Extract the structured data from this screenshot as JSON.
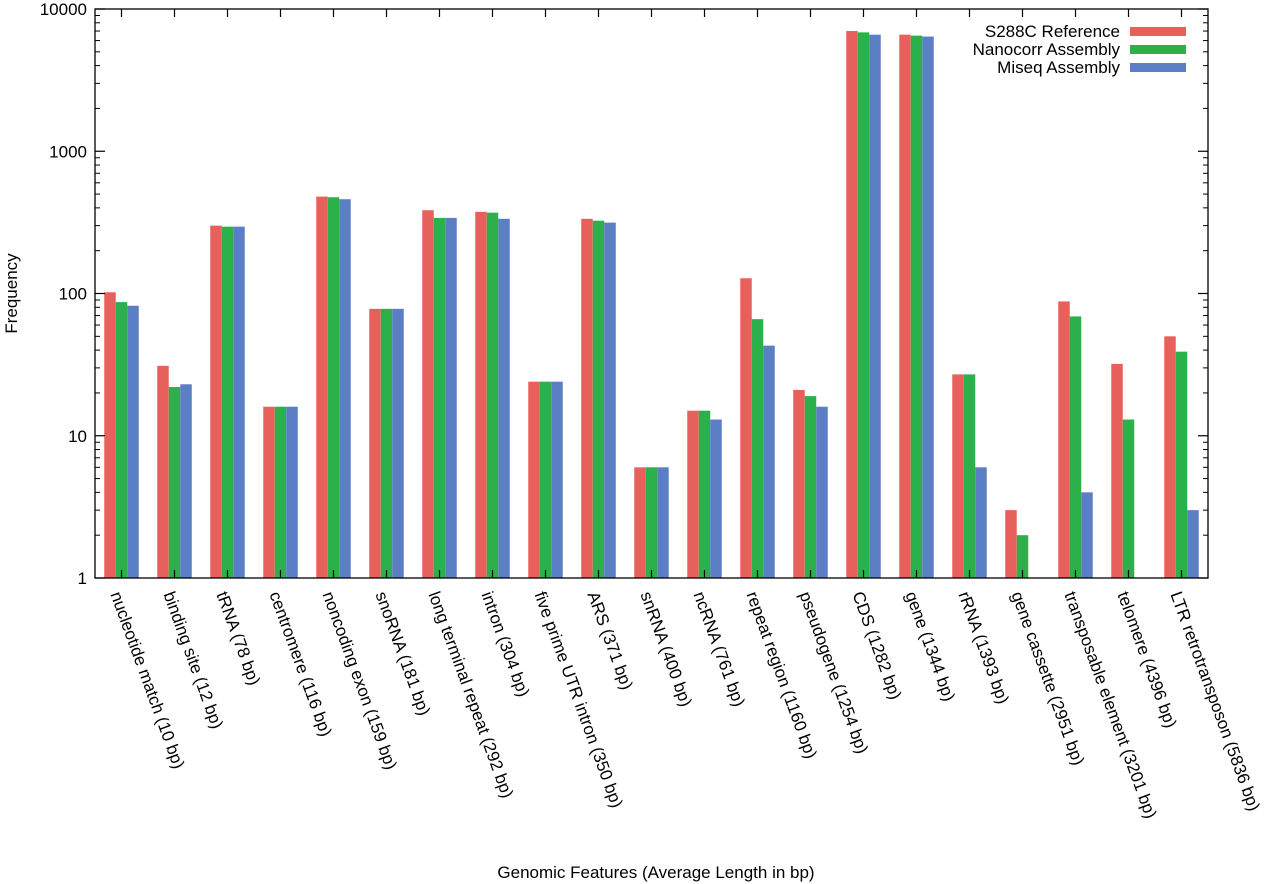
{
  "chart_data": {
    "type": "bar",
    "xlabel": "Genomic Features (Average Length in bp)",
    "ylabel": "Frequency",
    "yscale": "log",
    "ylim": [
      1,
      10000
    ],
    "yticks": [
      "1",
      "10",
      "100",
      "1000",
      "10000"
    ],
    "legend_position": "top-right",
    "grid": false,
    "categories": [
      "nucleotide match (10 bp)",
      "binding site (12 bp)",
      "tRNA (78 bp)",
      "centromere (116 bp)",
      "noncoding exon (159 bp)",
      "snoRNA (181 bp)",
      "long terminal repeat (292 bp)",
      "intron (304 bp)",
      "five prime UTR intron (350 bp)",
      "ARS (371 bp)",
      "snRNA (400 bp)",
      "ncRNA (761 bp)",
      "repeat region (1160 bp)",
      "pseudogene (1254 bp)",
      "CDS (1282 bp)",
      "gene (1344 bp)",
      "rRNA (1393 bp)",
      "gene cassette (2951 bp)",
      "transposable element (3201 bp)",
      "telomere (4396 bp)",
      "LTR retrotransposon (5836 bp)"
    ],
    "series": [
      {
        "name": "S288C Reference",
        "color": "#e8605c",
        "values": [
          102,
          31,
          300,
          16,
          480,
          78,
          385,
          375,
          24,
          335,
          6,
          15,
          128,
          21,
          7000,
          6600,
          27,
          3,
          88,
          32,
          50
        ]
      },
      {
        "name": "Nanocorr Assembly",
        "color": "#2bb04b",
        "values": [
          87,
          22,
          295,
          16,
          475,
          78,
          340,
          370,
          24,
          325,
          6,
          15,
          66,
          19,
          6850,
          6500,
          27,
          2,
          69,
          13,
          39
        ]
      },
      {
        "name": "Miseq Assembly",
        "color": "#5b7ec4",
        "values": [
          82,
          23,
          295,
          16,
          460,
          78,
          340,
          335,
          24,
          315,
          6,
          13,
          43,
          16,
          6600,
          6400,
          6,
          1,
          4,
          1,
          3
        ]
      }
    ]
  }
}
